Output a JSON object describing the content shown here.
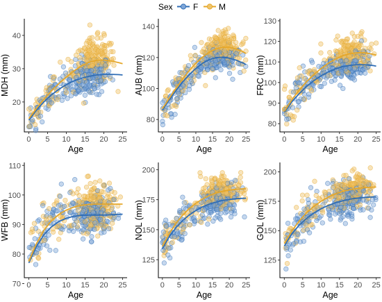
{
  "legend": {
    "title": "Sex",
    "entries": [
      {
        "label": "F",
        "color": "#2f6db5"
      },
      {
        "label": "M",
        "color": "#e5a72a"
      }
    ]
  },
  "colors": {
    "F": "#2f6db5",
    "M": "#e5a72a",
    "F_fill": "#7fa6d8",
    "M_fill": "#f0c46a"
  },
  "chart_data": [
    {
      "type": "scatter",
      "xlabel": "Age",
      "ylabel": "MDH (mm)",
      "x_ticks": [
        0,
        5,
        10,
        15,
        20,
        25
      ],
      "x_tick_labels": [
        "0",
        "5",
        "10",
        "15",
        "20",
        "25"
      ],
      "y_ticks": [
        20,
        30,
        40
      ],
      "y_tick_labels": [
        "20",
        "30",
        "40"
      ],
      "xlim": [
        -1.2,
        26.2
      ],
      "ylim": [
        11,
        45
      ],
      "series": [
        {
          "name": "F",
          "curve_x": [
            0,
            2,
            4,
            6,
            8,
            10,
            12,
            14,
            16,
            18,
            20,
            22,
            24,
            25
          ],
          "curve_y": [
            14.5,
            17.5,
            20,
            22.1,
            23.8,
            25.2,
            26.3,
            27.1,
            27.7,
            28.1,
            28.3,
            28.3,
            28.2,
            28.1
          ],
          "cloud": [
            {
              "x": 16,
              "y": 27,
              "sx": 3,
              "sy": 3.4,
              "n": 180
            },
            {
              "x": 6,
              "y": 22,
              "sx": 4,
              "sy": 3,
              "n": 70
            }
          ]
        },
        {
          "name": "M",
          "curve_x": [
            0,
            2,
            4,
            6,
            8,
            10,
            12,
            14,
            16,
            18,
            20,
            22,
            24,
            25
          ],
          "curve_y": [
            15,
            18,
            20.8,
            23.3,
            25.5,
            27.5,
            29.3,
            30.8,
            31.9,
            32.5,
            32.6,
            32.3,
            31.8,
            31.5
          ],
          "cloud": [
            {
              "x": 17.5,
              "y": 32.5,
              "sx": 2.8,
              "sy": 4,
              "n": 190
            },
            {
              "x": 6,
              "y": 23,
              "sx": 4,
              "sy": 3,
              "n": 60
            }
          ]
        }
      ]
    },
    {
      "type": "scatter",
      "xlabel": "Age",
      "ylabel": "AUB (mm)",
      "x_ticks": [
        0,
        5,
        10,
        15,
        20,
        25
      ],
      "x_tick_labels": [
        "0",
        "5",
        "10",
        "15",
        "20",
        "25"
      ],
      "y_ticks": [
        80,
        100,
        120,
        140
      ],
      "y_tick_labels": [
        "80",
        "100",
        "120",
        "140"
      ],
      "xlim": [
        -1.2,
        26.2
      ],
      "ylim": [
        72,
        145
      ],
      "series": [
        {
          "name": "F",
          "curve_x": [
            0,
            2,
            4,
            6,
            8,
            10,
            12,
            14,
            16,
            18,
            20,
            22,
            24,
            25
          ],
          "curve_y": [
            86,
            92.5,
            98.5,
            104,
            108.8,
            113,
            116.3,
            118.6,
            119.9,
            120.2,
            119.6,
            118.3,
            116.5,
            115.5
          ],
          "cloud": [
            {
              "x": 17,
              "y": 119,
              "sx": 3,
              "sy": 5.5,
              "n": 180
            },
            {
              "x": 5,
              "y": 101,
              "sx": 3.6,
              "sy": 7,
              "n": 75
            }
          ]
        },
        {
          "name": "M",
          "curve_x": [
            0,
            2,
            4,
            6,
            8,
            10,
            12,
            14,
            16,
            18,
            20,
            22,
            24,
            25
          ],
          "curve_y": [
            87,
            93.5,
            100,
            106,
            111.5,
            116.3,
            120.3,
            123.4,
            125.5,
            126.6,
            126.6,
            125.6,
            123.8,
            122.6
          ],
          "cloud": [
            {
              "x": 18,
              "y": 126,
              "sx": 2.8,
              "sy": 6,
              "n": 190
            },
            {
              "x": 6,
              "y": 104,
              "sx": 4,
              "sy": 7,
              "n": 60
            }
          ]
        }
      ]
    },
    {
      "type": "scatter",
      "xlabel": "Age",
      "ylabel": "FRC (mm)",
      "x_ticks": [
        0,
        5,
        10,
        15,
        20,
        25
      ],
      "x_tick_labels": [
        "0",
        "5",
        "10",
        "15",
        "20",
        "25"
      ],
      "y_ticks": [
        80,
        90,
        100,
        110,
        120,
        130
      ],
      "y_tick_labels": [
        "80",
        "90",
        "100",
        "110",
        "120",
        "130"
      ],
      "xlim": [
        -1.2,
        26.2
      ],
      "ylim": [
        76,
        131
      ],
      "series": [
        {
          "name": "F",
          "curve_x": [
            0,
            2,
            4,
            6,
            8,
            10,
            12,
            14,
            16,
            18,
            20,
            22,
            24,
            25
          ],
          "curve_y": [
            85.5,
            90.5,
            94.5,
            98,
            100.9,
            103.3,
            105.2,
            106.7,
            107.8,
            108.4,
            108.7,
            108.6,
            108.3,
            108
          ],
          "cloud": [
            {
              "x": 17,
              "y": 108,
              "sx": 3,
              "sy": 4,
              "n": 180
            },
            {
              "x": 5,
              "y": 96,
              "sx": 3.8,
              "sy": 5,
              "n": 75
            }
          ]
        },
        {
          "name": "M",
          "curve_x": [
            0,
            2,
            4,
            6,
            8,
            10,
            12,
            14,
            16,
            18,
            20,
            22,
            24,
            25
          ],
          "curve_y": [
            86,
            91.5,
            96.2,
            100.3,
            103.8,
            106.8,
            109.4,
            111.5,
            113.1,
            114.1,
            114.5,
            114.4,
            113.8,
            113.4
          ],
          "cloud": [
            {
              "x": 18,
              "y": 114,
              "sx": 2.8,
              "sy": 5,
              "n": 190
            },
            {
              "x": 6,
              "y": 99,
              "sx": 4,
              "sy": 5,
              "n": 60
            }
          ]
        }
      ]
    },
    {
      "type": "scatter",
      "xlabel": "Age",
      "ylabel": "WFB (mm)",
      "x_ticks": [
        0,
        5,
        10,
        15,
        20,
        25
      ],
      "x_tick_labels": [
        "0",
        "5",
        "10",
        "15",
        "20",
        "25"
      ],
      "y_ticks": [
        70,
        80,
        90,
        100,
        110
      ],
      "y_tick_labels": [
        "70",
        "80",
        "90",
        "100",
        "110"
      ],
      "xlim": [
        -1.2,
        26.2
      ],
      "ylim": [
        72,
        111
      ],
      "series": [
        {
          "name": "F",
          "curve_x": [
            0,
            2,
            4,
            6,
            8,
            10,
            12,
            14,
            16,
            18,
            20,
            22,
            24,
            25
          ],
          "curve_y": [
            77,
            82.5,
            86.5,
            89.2,
            91,
            92.1,
            92.8,
            93.1,
            93.2,
            93.2,
            93.2,
            93.3,
            93.4,
            93.5
          ],
          "cloud": [
            {
              "x": 17,
              "y": 93,
              "sx": 3,
              "sy": 4,
              "n": 180
            },
            {
              "x": 5,
              "y": 87,
              "sx": 3.6,
              "sy": 5,
              "n": 75
            }
          ]
        },
        {
          "name": "M",
          "curve_x": [
            0,
            2,
            4,
            6,
            8,
            10,
            12,
            14,
            16,
            18,
            20,
            22,
            24,
            25
          ],
          "curve_y": [
            77.5,
            83.5,
            88,
            91.2,
            93.4,
            94.9,
            95.9,
            96.5,
            96.8,
            96.9,
            96.9,
            96.9,
            96.9,
            96.9
          ],
          "cloud": [
            {
              "x": 18,
              "y": 97,
              "sx": 2.8,
              "sy": 4.5,
              "n": 190
            },
            {
              "x": 6,
              "y": 89,
              "sx": 4,
              "sy": 5,
              "n": 60
            }
          ]
        }
      ]
    },
    {
      "type": "scatter",
      "xlabel": "Age",
      "ylabel": "NOL (mm)",
      "x_ticks": [
        0,
        5,
        10,
        15,
        20,
        25
      ],
      "x_tick_labels": [
        "0",
        "5",
        "10",
        "15",
        "20",
        "25"
      ],
      "y_ticks": [
        125,
        150,
        175,
        200
      ],
      "y_tick_labels": [
        "125",
        "150",
        "175",
        "200"
      ],
      "xlim": [
        -1.2,
        26.2
      ],
      "ylim": [
        110,
        206
      ],
      "series": [
        {
          "name": "F",
          "curve_x": [
            0,
            2,
            4,
            6,
            8,
            10,
            12,
            14,
            16,
            18,
            20,
            22,
            24,
            25
          ],
          "curve_y": [
            134,
            144,
            151.5,
            157.5,
            162.2,
            166,
            169,
            171.3,
            173,
            174.3,
            175.2,
            175.8,
            176.1,
            176.2
          ],
          "cloud": [
            {
              "x": 17,
              "y": 174,
              "sx": 3,
              "sy": 8,
              "n": 180
            },
            {
              "x": 5,
              "y": 153,
              "sx": 3.6,
              "sy": 10,
              "n": 75
            }
          ]
        },
        {
          "name": "M",
          "curve_x": [
            0,
            2,
            4,
            6,
            8,
            10,
            12,
            14,
            16,
            18,
            20,
            22,
            24,
            25
          ],
          "curve_y": [
            136,
            146.5,
            155,
            162,
            167.5,
            172,
            175.6,
            178.4,
            180.5,
            182,
            183,
            183.6,
            184,
            184.1
          ],
          "cloud": [
            {
              "x": 18,
              "y": 183,
              "sx": 2.8,
              "sy": 8,
              "n": 190
            },
            {
              "x": 6,
              "y": 158,
              "sx": 4,
              "sy": 10,
              "n": 60
            }
          ]
        }
      ]
    },
    {
      "type": "scatter",
      "xlabel": "Age",
      "ylabel": "GOL (mm)",
      "x_ticks": [
        0,
        5,
        10,
        15,
        20,
        25
      ],
      "x_tick_labels": [
        "0",
        "5",
        "10",
        "15",
        "20",
        "25"
      ],
      "y_ticks": [
        125,
        150,
        175,
        200
      ],
      "y_tick_labels": [
        "125",
        "150",
        "175",
        "200"
      ],
      "xlim": [
        -1.2,
        26.2
      ],
      "ylim": [
        110,
        208
      ],
      "series": [
        {
          "name": "F",
          "curve_x": [
            0,
            2,
            4,
            6,
            8,
            10,
            12,
            14,
            16,
            18,
            20,
            22,
            24,
            25
          ],
          "curve_y": [
            137,
            147,
            154.5,
            160.3,
            164.9,
            168.6,
            171.5,
            173.8,
            175.5,
            176.8,
            177.7,
            178.3,
            178.7,
            178.8
          ],
          "cloud": [
            {
              "x": 17,
              "y": 177,
              "sx": 3,
              "sy": 8,
              "n": 180
            },
            {
              "x": 5,
              "y": 156,
              "sx": 3.6,
              "sy": 10,
              "n": 75
            }
          ]
        },
        {
          "name": "M",
          "curve_x": [
            0,
            2,
            4,
            6,
            8,
            10,
            12,
            14,
            16,
            18,
            20,
            22,
            24,
            25
          ],
          "curve_y": [
            139,
            149.5,
            158,
            165,
            170.5,
            175,
            178.6,
            181.4,
            183.5,
            185,
            186,
            186.6,
            187,
            187.1
          ],
          "cloud": [
            {
              "x": 18,
              "y": 186,
              "sx": 2.8,
              "sy": 8,
              "n": 190
            },
            {
              "x": 6,
              "y": 161,
              "sx": 4,
              "sy": 10,
              "n": 60
            }
          ]
        }
      ]
    }
  ]
}
